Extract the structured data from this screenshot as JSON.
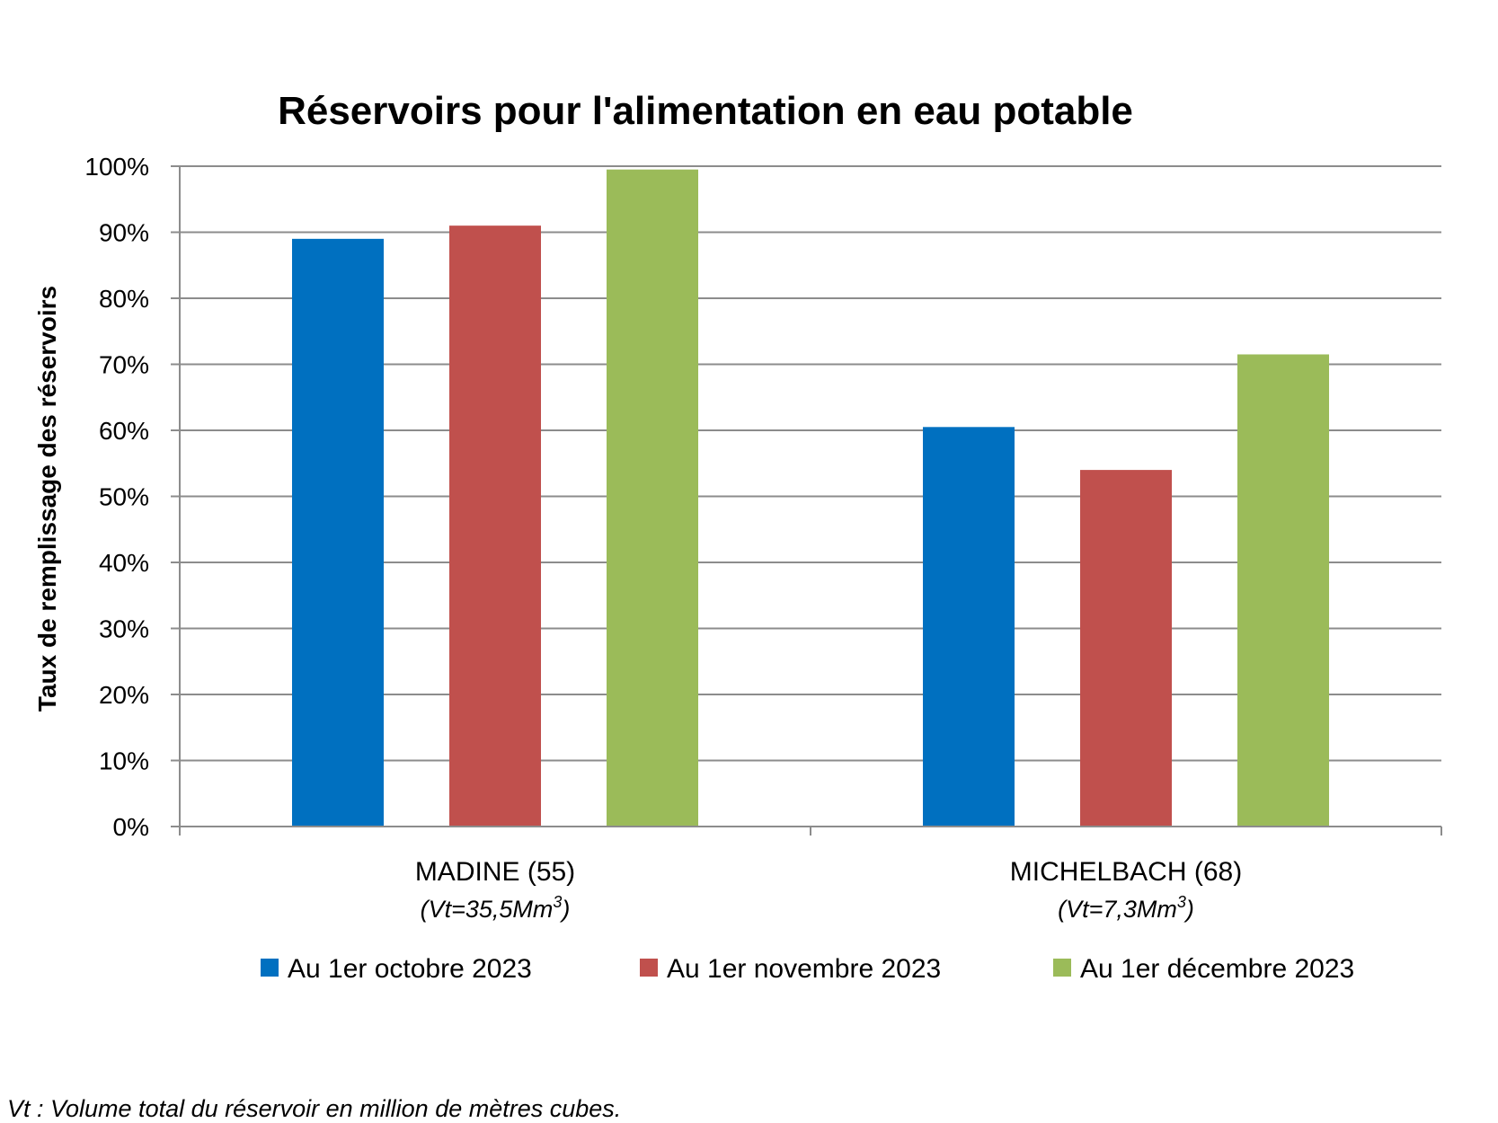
{
  "chart_data": {
    "type": "bar",
    "title": "Réservoirs pour l'alimentation en eau potable",
    "xlabel": "",
    "ylabel": "Taux de remplissage des réservoirs",
    "ylim": [
      0,
      100
    ],
    "yticks": [
      "0%",
      "10%",
      "20%",
      "30%",
      "40%",
      "50%",
      "60%",
      "70%",
      "80%",
      "90%",
      "100%"
    ],
    "categories": [
      {
        "label": "MADINE (55)",
        "sub_prefix": "(Vt=35,5Mm",
        "sub_sup": "3",
        "sub_suffix": ")"
      },
      {
        "label": "MICHELBACH (68)",
        "sub_prefix": "(Vt=7,3Mm",
        "sub_sup": "3",
        "sub_suffix": ")"
      }
    ],
    "series": [
      {
        "name": "Au 1er octobre 2023",
        "color": "#0070c0",
        "values": [
          89,
          60.5
        ]
      },
      {
        "name": "Au 1er novembre 2023",
        "color": "#c0504d",
        "values": [
          91,
          54
        ]
      },
      {
        "name": "Au 1er décembre 2023",
        "color": "#9bbb59",
        "values": [
          99.5,
          71.5
        ]
      }
    ],
    "grid": true,
    "legend_position": "bottom",
    "footnote": "Vt : Volume total du réservoir en million de mètres cubes."
  }
}
